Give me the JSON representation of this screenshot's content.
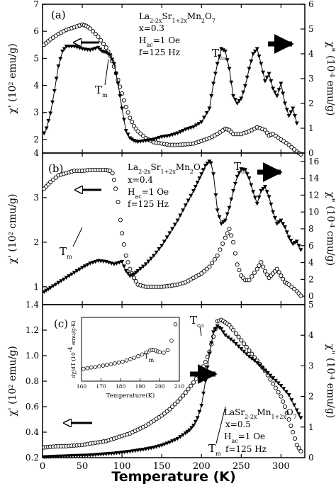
{
  "figure": {
    "xlabel": "Temperature (K)",
    "x_ticks": [
      "0",
      "50",
      "100",
      "150",
      "200",
      "250",
      "300"
    ]
  },
  "chart_data": [
    {
      "type": "scatter",
      "panel": "(a)",
      "xlim": [
        0,
        330
      ],
      "ylim_left": [
        1.5,
        7
      ],
      "ylim_right": [
        0,
        6
      ],
      "ylabel_left": "χ' (10² emu/g)",
      "ylabel_right": "χ\" (10⁻⁴ emu/g)",
      "y_ticks_left": [
        "2",
        "3",
        "4",
        "5",
        "6",
        "7"
      ],
      "y_ticks_right": [
        "0",
        "1",
        "2",
        "3",
        "4",
        "5",
        "6"
      ],
      "annotations": [
        "(a)",
        "La2-2xSr1+2xMn2O7",
        "x=0.3",
        "Hac=1 Oe",
        "f=125 Hz",
        "Tm",
        "Tco"
      ],
      "series": [
        {
          "marker": "open-circle",
          "axis": "left",
          "x": [
            2,
            10,
            20,
            30,
            40,
            50,
            55,
            60,
            70,
            80,
            85,
            90,
            95,
            100,
            105,
            110,
            115,
            120,
            130,
            140,
            150,
            160,
            170,
            180,
            190,
            200,
            210,
            220,
            230,
            235,
            240,
            250,
            260,
            270,
            280,
            285,
            290,
            300,
            310,
            320,
            325
          ],
          "y": [
            5.5,
            5.7,
            5.9,
            6.05,
            6.15,
            6.25,
            6.2,
            6.1,
            5.8,
            5.4,
            5.1,
            4.7,
            4.2,
            3.7,
            3.2,
            2.8,
            2.5,
            2.3,
            2.05,
            1.9,
            1.85,
            1.8,
            1.8,
            1.82,
            1.85,
            1.95,
            2.05,
            2.2,
            2.4,
            2.35,
            2.2,
            2.2,
            2.3,
            2.45,
            2.35,
            2.15,
            2.2,
            2.0,
            1.8,
            1.55,
            1.45
          ]
        },
        {
          "marker": "filled-triangle-down",
          "axis": "right",
          "x": [
            2,
            5,
            10,
            15,
            20,
            25,
            30,
            40,
            50,
            60,
            70,
            75,
            80,
            85,
            90,
            95,
            100,
            105,
            110,
            115,
            120,
            130,
            140,
            150,
            160,
            170,
            180,
            190,
            200,
            210,
            215,
            220,
            225,
            230,
            235,
            240,
            245,
            250,
            255,
            260,
            265,
            270,
            275,
            280,
            285,
            290,
            295,
            300,
            305,
            310,
            315,
            320
          ],
          "y": [
            0.8,
            1.0,
            1.6,
            2.5,
            3.5,
            4.1,
            4.3,
            4.3,
            4.2,
            4.15,
            4.25,
            4.1,
            4.05,
            3.95,
            3.6,
            2.8,
            1.8,
            0.9,
            0.6,
            0.5,
            0.45,
            0.5,
            0.55,
            0.65,
            0.7,
            0.8,
            0.95,
            1.05,
            1.25,
            1.8,
            2.8,
            3.6,
            4.2,
            4.1,
            3.4,
            2.3,
            2.0,
            2.2,
            2.7,
            3.4,
            4.0,
            4.2,
            3.6,
            2.9,
            3.2,
            2.6,
            2.3,
            2.8,
            2.0,
            1.5,
            1.8,
            1.2
          ]
        }
      ]
    },
    {
      "type": "scatter",
      "panel": "(b)",
      "xlim": [
        0,
        330
      ],
      "ylim_left": [
        0.6,
        4
      ],
      "ylim_right": [
        -1,
        17
      ],
      "ylabel_left": "χ' (10² cmu/g)",
      "ylabel_right": "χ\" (10⁻⁴ cmu/g)",
      "y_ticks_left": [
        "1",
        "2",
        "3",
        "4"
      ],
      "y_ticks_right": [
        "0",
        "2",
        "4",
        "6",
        "8",
        "10",
        "12",
        "14",
        "16"
      ],
      "annotations": [
        "(b)",
        "La2-2xSr1+2xMn2O7",
        "x=0.4",
        "Hac=1 Oe",
        "f=125 Hz",
        "Tm",
        "Tco"
      ],
      "series": [
        {
          "marker": "open-circle",
          "axis": "left",
          "x": [
            2,
            10,
            20,
            30,
            40,
            50,
            60,
            70,
            80,
            85,
            88,
            90,
            92,
            95,
            98,
            100,
            105,
            110,
            115,
            120,
            130,
            140,
            150,
            160,
            170,
            180,
            190,
            200,
            210,
            220,
            230,
            235,
            240,
            245,
            250,
            255,
            260,
            270,
            275,
            280,
            285,
            290,
            295,
            300,
            305,
            310,
            320,
            325
          ],
          "y": [
            3.2,
            3.35,
            3.5,
            3.55,
            3.6,
            3.6,
            3.62,
            3.62,
            3.62,
            3.6,
            3.55,
            3.4,
            3.2,
            2.9,
            2.5,
            2.2,
            1.7,
            1.4,
            1.2,
            1.05,
            1.0,
            1.0,
            1.0,
            1.02,
            1.05,
            1.1,
            1.2,
            1.3,
            1.45,
            1.7,
            2.1,
            2.3,
            2.0,
            1.5,
            1.25,
            1.15,
            1.15,
            1.4,
            1.55,
            1.35,
            1.2,
            1.3,
            1.4,
            1.25,
            1.1,
            1.05,
            0.9,
            0.8
          ]
        },
        {
          "marker": "filled-triangle-down",
          "axis": "right",
          "x": [
            2,
            10,
            20,
            30,
            40,
            50,
            60,
            70,
            80,
            90,
            100,
            105,
            110,
            115,
            120,
            130,
            140,
            150,
            160,
            170,
            180,
            190,
            195,
            200,
            205,
            210,
            212,
            215,
            218,
            220,
            225,
            230,
            235,
            240,
            245,
            250,
            255,
            260,
            265,
            270,
            275,
            280,
            285,
            290,
            295,
            300,
            305,
            310,
            315,
            320,
            325
          ],
          "y": [
            0.5,
            1.0,
            1.6,
            2.2,
            2.8,
            3.4,
            3.9,
            4.2,
            4.1,
            3.8,
            4.1,
            3.0,
            2.4,
            2.6,
            3.0,
            3.8,
            4.8,
            6.0,
            7.5,
            9.0,
            10.8,
            12.5,
            13.5,
            14.5,
            15.5,
            16.0,
            15.8,
            14.5,
            12.0,
            10.2,
            8.6,
            9.0,
            10.5,
            12.5,
            14.2,
            15.1,
            15.0,
            14.0,
            12.4,
            11.0,
            12.5,
            13.0,
            11.8,
            10.0,
            8.6,
            9.0,
            8.2,
            7.0,
            6.2,
            6.5,
            5.5
          ]
        }
      ]
    },
    {
      "type": "scatter",
      "panel": "(c)",
      "xlim": [
        0,
        330
      ],
      "ylim_left": [
        0.2,
        1.4
      ],
      "ylim_right": [
        0,
        5
      ],
      "ylabel_left": "χ' (10² emu/g)",
      "ylabel_right": "χ\" (10⁻⁴ emu/g)",
      "y_ticks_left": [
        "0.2",
        "0.4",
        "0.6",
        "0.8",
        "1.0",
        "1.2",
        "1.4"
      ],
      "y_ticks_right": [
        "0",
        "1",
        "2",
        "3",
        "4",
        "5"
      ],
      "annotations": [
        "(c)",
        "LaSr2-2xMn1+2xO7",
        "x=0.5",
        "Hac=1 Oe",
        "f=125 Hz",
        "Tm",
        "Tco"
      ],
      "series": [
        {
          "marker": "open-circle",
          "axis": "left",
          "x": [
            2,
            10,
            20,
            30,
            40,
            50,
            60,
            70,
            80,
            90,
            100,
            110,
            120,
            130,
            140,
            150,
            160,
            170,
            180,
            190,
            200,
            205,
            210,
            215,
            220,
            225,
            230,
            235,
            240,
            250,
            260,
            270,
            280,
            290,
            300,
            305,
            310,
            315,
            320,
            325
          ],
          "y": [
            0.28,
            0.285,
            0.29,
            0.29,
            0.295,
            0.3,
            0.31,
            0.32,
            0.33,
            0.35,
            0.37,
            0.39,
            0.42,
            0.45,
            0.49,
            0.53,
            0.58,
            0.64,
            0.71,
            0.79,
            0.88,
            0.95,
            1.03,
            1.15,
            1.27,
            1.28,
            1.26,
            1.24,
            1.2,
            1.12,
            1.04,
            0.96,
            0.88,
            0.78,
            0.68,
            0.6,
            0.5,
            0.4,
            0.3,
            0.25
          ]
        },
        {
          "marker": "filled-triangle-down",
          "axis": "right",
          "x": [
            2,
            10,
            20,
            30,
            40,
            50,
            60,
            70,
            80,
            90,
            100,
            110,
            120,
            130,
            140,
            150,
            160,
            170,
            180,
            185,
            190,
            195,
            200,
            205,
            210,
            215,
            220,
            225,
            230,
            240,
            250,
            260,
            270,
            280,
            290,
            300,
            310,
            320,
            325
          ],
          "y": [
            0.02,
            0.03,
            0.04,
            0.05,
            0.06,
            0.07,
            0.08,
            0.1,
            0.12,
            0.14,
            0.17,
            0.2,
            0.24,
            0.28,
            0.33,
            0.4,
            0.5,
            0.62,
            0.8,
            0.9,
            1.05,
            1.3,
            1.7,
            2.5,
            3.4,
            4.1,
            4.3,
            4.2,
            4.0,
            3.8,
            3.55,
            3.3,
            3.1,
            2.85,
            2.6,
            2.35,
            2.05,
            1.55,
            1.3
          ]
        }
      ]
    },
    {
      "type": "scatter",
      "panel": "inset-c",
      "xlim": [
        160,
        210
      ],
      "ylim": [
        -0.5,
        3.2
      ],
      "xlabel": "Temperature(K)",
      "ylabel": "dχ/dT (10⁻⁴ emu/g-K)",
      "x_ticks": [
        "160",
        "170",
        "180",
        "190",
        "200",
        "210"
      ],
      "y_ticks": [],
      "annotations": [
        "Tm"
      ],
      "series": [
        {
          "marker": "open-circle",
          "x": [
            161,
            163,
            165,
            167,
            169,
            171,
            173,
            175,
            177,
            179,
            181,
            183,
            185,
            187,
            189,
            191,
            193,
            195,
            196,
            197,
            198,
            199,
            200,
            202,
            204,
            206,
            208
          ],
          "y": [
            0.22,
            0.25,
            0.29,
            0.32,
            0.36,
            0.4,
            0.44,
            0.48,
            0.53,
            0.58,
            0.63,
            0.7,
            0.78,
            0.86,
            0.95,
            1.05,
            1.17,
            1.28,
            1.32,
            1.3,
            1.27,
            1.22,
            1.18,
            1.15,
            1.3,
            1.85,
            2.8
          ]
        }
      ]
    }
  ]
}
